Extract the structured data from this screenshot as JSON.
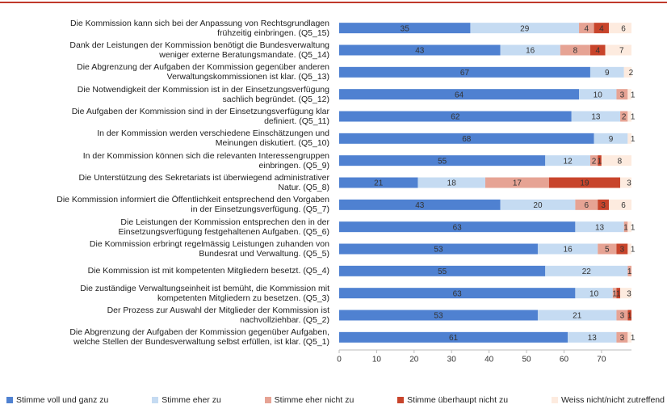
{
  "chart_data": {
    "type": "bar",
    "orientation": "horizontal",
    "stacked": true,
    "categories": [
      "Die Kommission kann sich bei der Anpassung von Rechtsgrundlagen\nfrühzeitig einbringen. (Q5_15)",
      "Dank der Leistungen der Kommission benötigt die Bundesverwaltung\nweniger externe Beratungsmandate. (Q5_14)",
      "Die Abgrenzung der Aufgaben der Kommission gegenüber anderen\nVerwaltungskommissionen ist klar. (Q5_13)",
      "Die Notwendigkeit der Kommission ist in der Einsetzungsverfügung\nsachlich begründet. (Q5_12)",
      "Die Aufgaben der Kommission sind in der Einsetzungsverfügung klar\ndefiniert. (Q5_11)",
      "In der Kommission werden verschiedene Einschätzungen und\nMeinungen diskutiert. (Q5_10)",
      "In der Kommission können sich die relevanten Interessengruppen\neinbringen. (Q5_9)",
      "Die Unterstützung des Sekretariats ist überwiegend administrativer\nNatur. (Q5_8)",
      "Die Kommission informiert die Öffentlichkeit entsprechend den Vorgaben\nin der Einsetzungsverfügung. (Q5_7)",
      "Die Leistungen der Kommission entsprechen den in der\nEinsetzungsverfügung festgehaltenen Aufgaben. (Q5_6)",
      "Die Kommission erbringt regelmässig Leistungen zuhanden von\nBundesrat und Verwaltung. (Q5_5)",
      "Die Kommission ist mit kompetenten Mitgliedern besetzt. (Q5_4)",
      "Die zuständige Verwaltungseinheit ist bemüht, die Kommission mit\nkompetenten Mitgliedern zu besetzen. (Q5_3)",
      "Der Prozess zur Auswahl der Mitglieder der Kommission ist\nnachvollziehbar. (Q5_2)",
      "Die Abgrenzung der Aufgaben der Kommission gegenüber Aufgaben,\nwelche Stellen der Bundesverwaltung selbst erfüllen, ist klar. (Q5_1)"
    ],
    "series": [
      {
        "name": "Stimme voll und ganz zu",
        "color": "#4f81d1",
        "values": [
          35,
          43,
          67,
          64,
          62,
          68,
          55,
          21,
          43,
          63,
          53,
          55,
          63,
          53,
          61
        ]
      },
      {
        "name": "Stimme eher zu",
        "color": "#c5dbf2",
        "values": [
          29,
          16,
          9,
          10,
          13,
          9,
          12,
          18,
          20,
          13,
          16,
          22,
          10,
          21,
          13
        ]
      },
      {
        "name": "Stimme eher nicht zu",
        "color": "#e6a394",
        "values": [
          4,
          8,
          0,
          3,
          2,
          0,
          2,
          17,
          6,
          1,
          5,
          1,
          1,
          3,
          3
        ]
      },
      {
        "name": "Stimme überhaupt nicht zu",
        "color": "#c8442b",
        "values": [
          4,
          4,
          0,
          0,
          0,
          0,
          1,
          19,
          3,
          0,
          3,
          0,
          1,
          1,
          0
        ]
      },
      {
        "name": "Weiss nicht/nicht zutreffend",
        "color": "#fdebdf",
        "values": [
          6,
          7,
          2,
          1,
          1,
          1,
          8,
          3,
          6,
          1,
          1,
          0,
          3,
          0,
          1
        ]
      }
    ],
    "xlim": [
      0,
      78
    ],
    "xticks": [
      0,
      10,
      20,
      30,
      40,
      50,
      60,
      70
    ]
  }
}
